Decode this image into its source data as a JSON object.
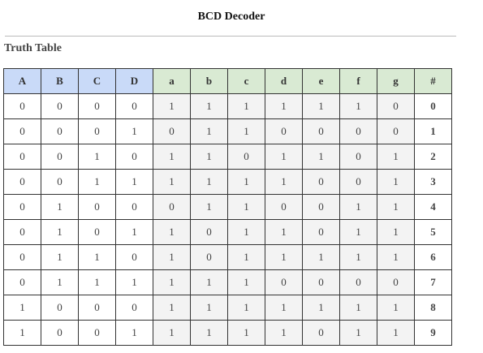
{
  "title": "BCD Decoder",
  "subtitle": "Truth Table",
  "colors": {
    "input_header": "#c9daf8",
    "output_header": "#d9ead3",
    "output_cell": "#f3f3f3",
    "border": "#333333"
  },
  "columns": [
    {
      "label": "A",
      "group": "in"
    },
    {
      "label": "B",
      "group": "in"
    },
    {
      "label": "C",
      "group": "in"
    },
    {
      "label": "D",
      "group": "in"
    },
    {
      "label": "a",
      "group": "out"
    },
    {
      "label": "b",
      "group": "out"
    },
    {
      "label": "c",
      "group": "out"
    },
    {
      "label": "d",
      "group": "out"
    },
    {
      "label": "e",
      "group": "out"
    },
    {
      "label": "f",
      "group": "out"
    },
    {
      "label": "g",
      "group": "out"
    },
    {
      "label": "#",
      "group": "num"
    }
  ],
  "rows": [
    [
      "0",
      "0",
      "0",
      "0",
      "1",
      "1",
      "1",
      "1",
      "1",
      "1",
      "0",
      "0"
    ],
    [
      "0",
      "0",
      "0",
      "1",
      "0",
      "1",
      "1",
      "0",
      "0",
      "0",
      "0",
      "1"
    ],
    [
      "0",
      "0",
      "1",
      "0",
      "1",
      "1",
      "0",
      "1",
      "1",
      "0",
      "1",
      "2"
    ],
    [
      "0",
      "0",
      "1",
      "1",
      "1",
      "1",
      "1",
      "1",
      "0",
      "0",
      "1",
      "3"
    ],
    [
      "0",
      "1",
      "0",
      "0",
      "0",
      "1",
      "1",
      "0",
      "0",
      "1",
      "1",
      "4"
    ],
    [
      "0",
      "1",
      "0",
      "1",
      "1",
      "0",
      "1",
      "1",
      "0",
      "1",
      "1",
      "5"
    ],
    [
      "0",
      "1",
      "1",
      "0",
      "1",
      "0",
      "1",
      "1",
      "1",
      "1",
      "1",
      "6"
    ],
    [
      "0",
      "1",
      "1",
      "1",
      "1",
      "1",
      "1",
      "0",
      "0",
      "0",
      "0",
      "7"
    ],
    [
      "1",
      "0",
      "0",
      "0",
      "1",
      "1",
      "1",
      "1",
      "1",
      "1",
      "1",
      "8"
    ],
    [
      "1",
      "0",
      "0",
      "1",
      "1",
      "1",
      "1",
      "1",
      "0",
      "1",
      "1",
      "9"
    ]
  ]
}
